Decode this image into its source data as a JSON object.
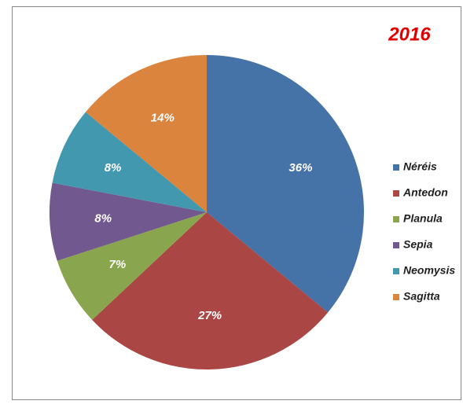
{
  "chart_data": {
    "type": "pie",
    "title": "2016",
    "categories": [
      "Néréis",
      "Antedon",
      "Planula",
      "Sepia",
      "Neomysis",
      "Sagitta"
    ],
    "values": [
      36,
      27,
      7,
      8,
      8,
      14
    ],
    "value_labels": [
      "36%",
      "27%",
      "7%",
      "8%",
      "8%",
      "14%"
    ],
    "colors": [
      "#4572a7",
      "#aa4643",
      "#89a54e",
      "#71588f",
      "#4198af",
      "#db843d"
    ],
    "legend": "right"
  }
}
